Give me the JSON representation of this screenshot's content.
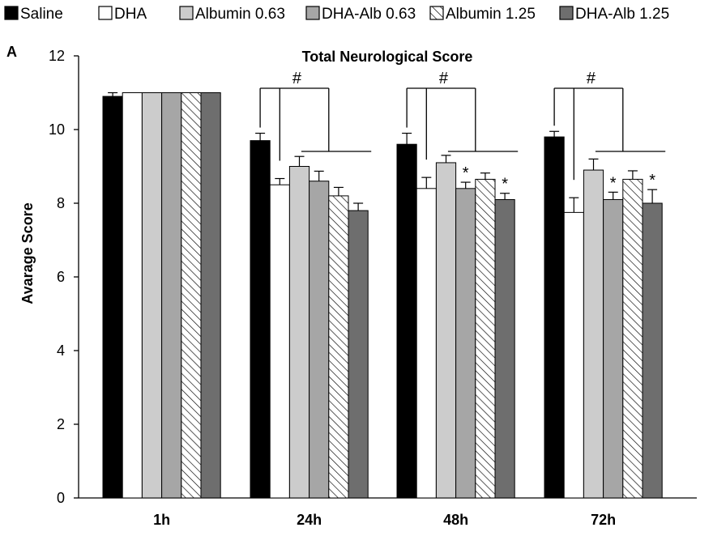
{
  "chart_data": {
    "type": "bar",
    "panel_label": "A",
    "title": "Total Neurological Score",
    "xlabel": "",
    "ylabel": "Avarage  Score",
    "ylim": [
      0,
      12
    ],
    "yticks": [
      0,
      2,
      4,
      6,
      8,
      10,
      12
    ],
    "grid": false,
    "legend_position": "top",
    "categories": [
      "1h",
      "24h",
      "48h",
      "72h"
    ],
    "series": [
      {
        "name": "Saline",
        "fill": "#000000",
        "pattern": "solid",
        "values": [
          10.9,
          9.7,
          9.6,
          9.8
        ],
        "errors": [
          0.1,
          0.2,
          0.3,
          0.15
        ]
      },
      {
        "name": "DHA",
        "fill": "#ffffff",
        "pattern": "solid",
        "values": [
          11.0,
          8.5,
          8.4,
          7.75
        ],
        "errors": [
          0.0,
          0.17,
          0.3,
          0.4
        ]
      },
      {
        "name": "Albumin 0.63",
        "fill": "#cccccc",
        "pattern": "solid",
        "values": [
          11.0,
          9.0,
          9.1,
          8.9
        ],
        "errors": [
          0.0,
          0.27,
          0.2,
          0.3
        ]
      },
      {
        "name": "DHA-Alb 0.63",
        "fill": "#a6a6a6",
        "pattern": "solid",
        "values": [
          11.0,
          8.6,
          8.4,
          8.1
        ],
        "errors": [
          0.0,
          0.27,
          0.17,
          0.2
        ]
      },
      {
        "name": "Albumin 1.25",
        "fill": "#ffffff",
        "pattern": "hatch",
        "values": [
          11.0,
          8.2,
          8.65,
          8.65
        ],
        "errors": [
          0.0,
          0.23,
          0.17,
          0.23
        ]
      },
      {
        "name": "DHA-Alb 1.25",
        "fill": "#6e6e6e",
        "pattern": "solid",
        "values": [
          11.0,
          7.8,
          8.1,
          8.0
        ],
        "errors": [
          0.0,
          0.2,
          0.17,
          0.37
        ]
      }
    ],
    "annotations": {
      "group_marker": "#",
      "group_marker_categories": [
        "24h",
        "48h",
        "72h"
      ],
      "star_marker": "*",
      "stars": [
        {
          "category": "48h",
          "series": "DHA-Alb 0.63"
        },
        {
          "category": "48h",
          "series": "DHA-Alb 1.25"
        },
        {
          "category": "72h",
          "series": "DHA-Alb 0.63"
        },
        {
          "category": "72h",
          "series": "DHA-Alb 1.25"
        }
      ]
    }
  }
}
